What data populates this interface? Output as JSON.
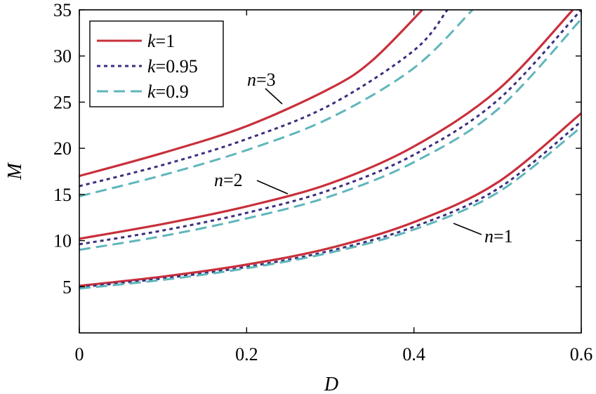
{
  "chart_data": {
    "type": "line",
    "xlabel": "D",
    "ylabel": "M",
    "xlim": [
      0,
      0.6
    ],
    "ylim": [
      0,
      35
    ],
    "x_ticks": [
      "0",
      "0.2",
      "0.4",
      "0.6"
    ],
    "y_ticks": [
      "5",
      "10",
      "15",
      "20",
      "25",
      "30",
      "35"
    ],
    "grid": false,
    "legend_position": "top-left",
    "legend": [
      {
        "var": "k",
        "eq": "=1",
        "style": "solid",
        "color": "#c8303b"
      },
      {
        "var": "k",
        "eq": "=0.95",
        "style": "dotted",
        "color": "#3b2f7e"
      },
      {
        "var": "k",
        "eq": "=0.9",
        "style": "dashed",
        "color": "#5fb6bb"
      }
    ],
    "annotations": [
      {
        "var": "n",
        "eq": "=3",
        "x": 0.245,
        "y": 24.6
      },
      {
        "var": "n",
        "eq": "=2",
        "x": 0.255,
        "y": 14.5
      },
      {
        "var": "n",
        "eq": "=1",
        "x": 0.455,
        "y": 11.7
      }
    ],
    "series": [
      {
        "group": "n=1",
        "k": "1",
        "style": "solid",
        "color": "#c8303b",
        "x": [
          0,
          0.1,
          0.2,
          0.3,
          0.4,
          0.5,
          0.6
        ],
        "y": [
          5.1,
          6.1,
          7.4,
          9.2,
          12.0,
          16.3,
          23.8
        ]
      },
      {
        "group": "n=1",
        "k": "0.95",
        "style": "dotted",
        "color": "#3b2f7e",
        "x": [
          0,
          0.1,
          0.2,
          0.3,
          0.4,
          0.5,
          0.6
        ],
        "y": [
          4.95,
          5.9,
          7.15,
          8.9,
          11.5,
          15.6,
          22.9
        ]
      },
      {
        "group": "n=1",
        "k": "0.9",
        "style": "dashed",
        "color": "#5fb6bb",
        "x": [
          0,
          0.1,
          0.2,
          0.3,
          0.4,
          0.5,
          0.6
        ],
        "y": [
          4.8,
          5.75,
          7.0,
          8.7,
          11.2,
          15.2,
          22.3
        ]
      },
      {
        "group": "n=2",
        "k": "1",
        "style": "solid",
        "color": "#c8303b",
        "x": [
          0,
          0.1,
          0.2,
          0.3,
          0.4,
          0.5,
          0.59
        ],
        "y": [
          10.2,
          11.8,
          13.7,
          16.2,
          20.2,
          26.3,
          35.0
        ]
      },
      {
        "group": "n=2",
        "k": "0.95",
        "style": "dotted",
        "color": "#3b2f7e",
        "x": [
          0,
          0.1,
          0.2,
          0.3,
          0.4,
          0.5,
          0.6
        ],
        "y": [
          9.6,
          11.1,
          13.0,
          15.5,
          19.3,
          25.2,
          35.0
        ]
      },
      {
        "group": "n=2",
        "k": "0.9",
        "style": "dashed",
        "color": "#5fb6bb",
        "x": [
          0,
          0.1,
          0.2,
          0.3,
          0.4,
          0.5,
          0.6
        ],
        "y": [
          9.0,
          10.5,
          12.4,
          14.8,
          18.5,
          24.2,
          34.0
        ]
      },
      {
        "group": "n=3",
        "k": "1",
        "style": "solid",
        "color": "#c8303b",
        "x": [
          0,
          0.1,
          0.2,
          0.3,
          0.35,
          0.41
        ],
        "y": [
          17.0,
          19.5,
          22.4,
          26.5,
          29.5,
          35.0
        ]
      },
      {
        "group": "n=3",
        "k": "0.95",
        "style": "dotted",
        "color": "#3b2f7e",
        "x": [
          0,
          0.1,
          0.2,
          0.3,
          0.4,
          0.44
        ],
        "y": [
          15.9,
          18.2,
          21.0,
          24.7,
          30.6,
          35.0
        ]
      },
      {
        "group": "n=3",
        "k": "0.9",
        "style": "dashed",
        "color": "#5fb6bb",
        "x": [
          0,
          0.1,
          0.2,
          0.3,
          0.4,
          0.47
        ],
        "y": [
          14.8,
          17.1,
          19.8,
          23.3,
          28.7,
          35.0
        ]
      }
    ]
  }
}
